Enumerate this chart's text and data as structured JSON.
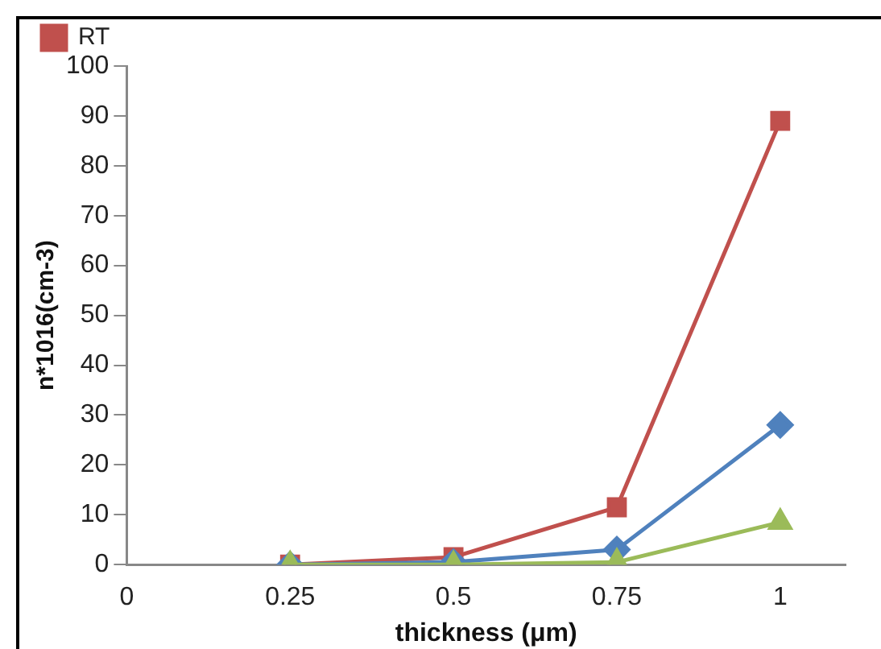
{
  "chart_data": {
    "type": "line",
    "xlabel": "thickness (μm)",
    "ylabel": "n*1016(cm-3)",
    "xlim": [
      0,
      1.1
    ],
    "xticks": [
      0,
      0.25,
      0.5,
      0.75,
      1
    ],
    "ylim": [
      0,
      100
    ],
    "yticks": [
      0,
      10,
      20,
      30,
      40,
      50,
      60,
      70,
      80,
      90,
      100
    ],
    "x": [
      0.25,
      0.5,
      0.75,
      1
    ],
    "grid": false,
    "legend": "top left",
    "series": [
      {
        "name": "RT",
        "color": "#c0504d",
        "values": [
          0,
          1.5,
          11.5,
          89
        ],
        "marker": "square"
      },
      {
        "color": "#4f81bd",
        "values": [
          0,
          0.5,
          3,
          28
        ],
        "marker": "diamond"
      },
      {
        "color": "#9bbb59",
        "values": [
          0,
          0,
          0.5,
          8.5
        ],
        "marker": "triangle"
      }
    ]
  }
}
